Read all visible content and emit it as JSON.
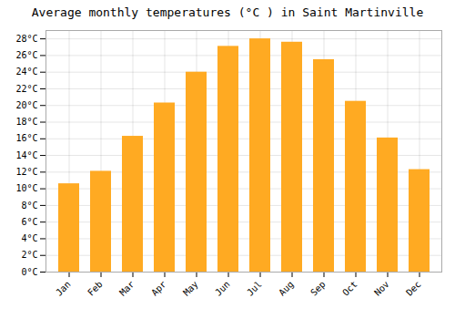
{
  "chart_data": {
    "type": "bar",
    "title": "Average monthly temperatures (°C ) in Saint Martinville",
    "categories": [
      "Jan",
      "Feb",
      "Mar",
      "Apr",
      "May",
      "Jun",
      "Jul",
      "Aug",
      "Sep",
      "Oct",
      "Nov",
      "Dec"
    ],
    "values": [
      10.6,
      12.1,
      16.3,
      20.3,
      24.0,
      27.1,
      28.0,
      27.6,
      25.5,
      20.5,
      16.1,
      12.3
    ],
    "color": "#FFAA22",
    "ylim": [
      0,
      29
    ],
    "yticks": [
      {
        "value": 0,
        "label": "0°C"
      },
      {
        "value": 2,
        "label": "2°C"
      },
      {
        "value": 4,
        "label": "4°C"
      },
      {
        "value": 6,
        "label": "6°C"
      },
      {
        "value": 8,
        "label": "8°C"
      },
      {
        "value": 10,
        "label": "10°C"
      },
      {
        "value": 12,
        "label": "12°C"
      },
      {
        "value": 14,
        "label": "14°C"
      },
      {
        "value": 16,
        "label": "16°C"
      },
      {
        "value": 18,
        "label": "18°C"
      },
      {
        "value": 20,
        "label": "20°C"
      },
      {
        "value": 22,
        "label": "22°C"
      },
      {
        "value": 24,
        "label": "24°C"
      },
      {
        "value": 26,
        "label": "26°C"
      },
      {
        "value": 28,
        "label": "28°C"
      }
    ],
    "grid": true
  }
}
